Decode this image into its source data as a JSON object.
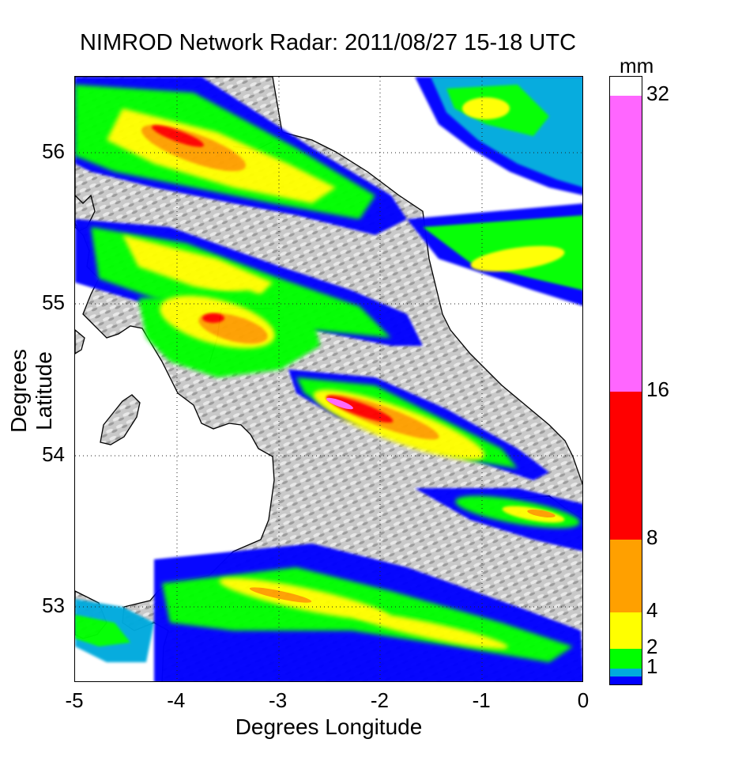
{
  "title": "NIMROD Network Radar: 2011/08/27 15-18 UTC",
  "x_axis": {
    "label": "Degrees Longitude",
    "range": [
      -5,
      0
    ],
    "ticks": [
      {
        "value": -5,
        "label": "-5"
      },
      {
        "value": -4,
        "label": "-4"
      },
      {
        "value": -3,
        "label": "-3"
      },
      {
        "value": -2,
        "label": "-2"
      },
      {
        "value": -1,
        "label": "-1"
      },
      {
        "value": 0,
        "label": "0"
      }
    ]
  },
  "y_axis": {
    "label": "Degrees Latitude",
    "range": [
      52.5,
      56.5
    ],
    "ticks": [
      {
        "value": 53,
        "label": "53"
      },
      {
        "value": 54,
        "label": "54"
      },
      {
        "value": 55,
        "label": "55"
      },
      {
        "value": 56,
        "label": "56"
      }
    ]
  },
  "grid": "dotted",
  "colorbar": {
    "unit": "mm",
    "ticks": [
      {
        "value": 1,
        "label": "1"
      },
      {
        "value": 2,
        "label": "2"
      },
      {
        "value": 4,
        "label": "4"
      },
      {
        "value": 8,
        "label": "8"
      },
      {
        "value": 16,
        "label": "16"
      },
      {
        "value": 32,
        "label": "32"
      }
    ],
    "bands": [
      {
        "from": 0,
        "to": 0.5,
        "color": "#0000ff"
      },
      {
        "from": 0.5,
        "to": 1,
        "color": "#00aadd"
      },
      {
        "from": 1,
        "to": 2,
        "color": "#00ff00"
      },
      {
        "from": 2,
        "to": 4,
        "color": "#ffff00"
      },
      {
        "from": 4,
        "to": 8,
        "color": "#ffa000"
      },
      {
        "from": 8,
        "to": 16,
        "color": "#ff0000"
      },
      {
        "from": 16,
        "to": 32,
        "color": "#ff66ff"
      },
      {
        "from": 32,
        "to": 34,
        "color": "#ffffff"
      }
    ]
  },
  "colors": {
    "land_shading": "#c8c8c8",
    "sea": "#ffffff",
    "coastline": "#000000"
  }
}
